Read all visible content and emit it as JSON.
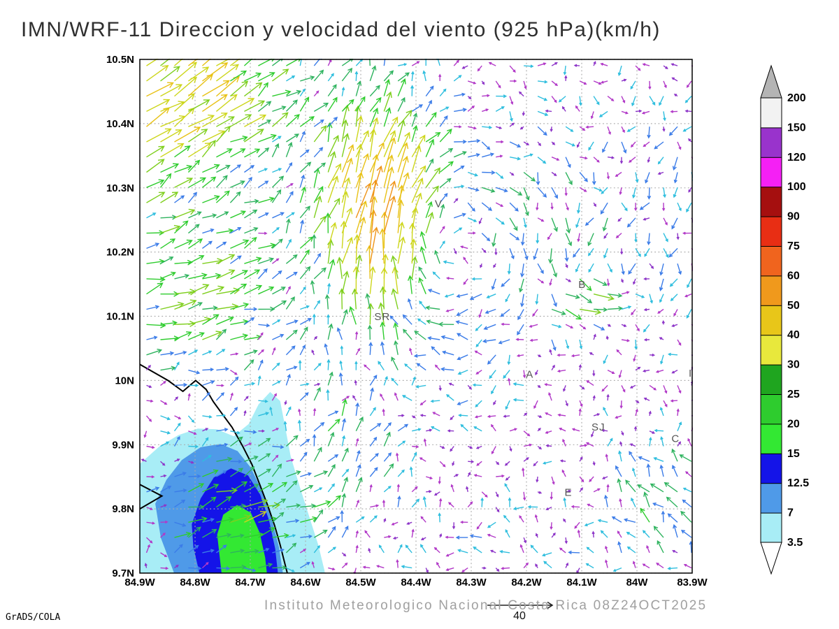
{
  "title": "IMN/WRF-11 Direccion y velocidad del viento (925 hPa)(km/h)",
  "footer": {
    "institution": "Instituto Meteorologico Nacional Costa Rica 08Z24OCT2025",
    "credit": "GrADS/COLA"
  },
  "chart_data": {
    "type": "vector-field-map",
    "model": "IMN/WRF-11",
    "variable": "Direccion y velocidad del viento",
    "level": "925 hPa",
    "units": "km/h",
    "valid_time": "08Z24OCT2025",
    "x_axis": {
      "min": -84.9,
      "max": -83.9,
      "ticks": [
        "84.9W",
        "84.8W",
        "84.7W",
        "84.6W",
        "84.5W",
        "84.4W",
        "84.3W",
        "84.2W",
        "84.1W",
        "84W",
        "83.9W"
      ]
    },
    "y_axis": {
      "min": 9.7,
      "max": 10.5,
      "ticks": [
        "10.5N",
        "10.4N",
        "10.3N",
        "10.2N",
        "10.1N",
        "10N",
        "9.9N",
        "9.8N",
        "9.7N"
      ]
    },
    "grid": {
      "dotted": true,
      "color": "#aaaaaa",
      "step_deg": 0.1
    },
    "legend": {
      "boundaries": [
        "3.5",
        "7",
        "12.5",
        "15",
        "20",
        "25",
        "30",
        "40",
        "50",
        "60",
        "75",
        "90",
        "100",
        "120",
        "150",
        "200"
      ],
      "band_colors": [
        "#a8edf6",
        "#4f9ae8",
        "#1414e8",
        "#33e833",
        "#2ecc2e",
        "#1fa51f",
        "#e8e83c",
        "#e8c619",
        "#f0991c",
        "#f0641e",
        "#e82e14",
        "#a50f0f",
        "#f520f5",
        "#9933cc",
        "#f2f2f2"
      ],
      "above_max_color": "#b4b4b4",
      "below_min_color": "#ffffff"
    },
    "arrow_palette": [
      {
        "max": 4.5,
        "color": "#8d35c8"
      },
      {
        "max": 7.5,
        "color": "#b23ac8"
      },
      {
        "max": 10.5,
        "color": "#2fbede"
      },
      {
        "max": 14,
        "color": "#3b7ce8"
      },
      {
        "max": 18,
        "color": "#2eb35e"
      },
      {
        "max": 23,
        "color": "#2ecc2e"
      },
      {
        "max": 29,
        "color": "#7fcf1e"
      },
      {
        "max": 36,
        "color": "#cdd61c"
      },
      {
        "max": 46,
        "color": "#e8c217"
      },
      {
        "max": 99,
        "color": "#ef9417"
      }
    ],
    "reference_vector": {
      "value": 40,
      "label": "40"
    },
    "stations": [
      {
        "label": "V",
        "lon": -84.359,
        "lat": 10.27
      },
      {
        "label": "SR",
        "lon": -84.461,
        "lat": 10.094
      },
      {
        "label": "B",
        "lon": -84.099,
        "lat": 10.144
      },
      {
        "label": "A",
        "lon": -84.194,
        "lat": 10.004
      },
      {
        "label": "SJ",
        "lon": -84.07,
        "lat": 9.922
      },
      {
        "label": "C",
        "lon": -83.93,
        "lat": 9.904
      },
      {
        "label": "E",
        "lon": -84.124,
        "lat": 9.82
      },
      {
        "label": "I",
        "lon": -83.903,
        "lat": 10.006
      }
    ],
    "coastlines": [
      [
        [
          -84.9,
          10.025
        ],
        [
          -84.849,
          10.0
        ],
        [
          -84.822,
          9.983
        ],
        [
          -84.799,
          10.0
        ],
        [
          -84.78,
          9.986
        ],
        [
          -84.767,
          9.967
        ],
        [
          -84.751,
          9.948
        ],
        [
          -84.733,
          9.927
        ],
        [
          -84.714,
          9.898
        ],
        [
          -84.697,
          9.869
        ],
        [
          -84.682,
          9.836
        ],
        [
          -84.668,
          9.804
        ],
        [
          -84.656,
          9.774
        ],
        [
          -84.646,
          9.744
        ],
        [
          -84.639,
          9.72
        ],
        [
          -84.633,
          9.7
        ]
      ],
      [
        [
          -84.9,
          9.838
        ],
        [
          -84.86,
          9.82
        ],
        [
          -84.9,
          9.8
        ]
      ]
    ],
    "shaded_regions": [
      {
        "level": "3.5",
        "color": "#a8edf6",
        "points": [
          [
            -84.9,
            9.87
          ],
          [
            -84.865,
            9.897
          ],
          [
            -84.83,
            9.915
          ],
          [
            -84.795,
            9.925
          ],
          [
            -84.76,
            9.924
          ],
          [
            -84.73,
            9.913
          ],
          [
            -84.703,
            9.932
          ],
          [
            -84.685,
            9.963
          ],
          [
            -84.664,
            9.982
          ],
          [
            -84.646,
            9.968
          ],
          [
            -84.637,
            9.928
          ],
          [
            -84.627,
            9.882
          ],
          [
            -84.611,
            9.836
          ],
          [
            -84.594,
            9.79
          ],
          [
            -84.577,
            9.744
          ],
          [
            -84.566,
            9.705
          ],
          [
            -84.565,
            9.7
          ],
          [
            -84.9,
            9.7
          ]
        ]
      },
      {
        "level": "7",
        "color": "#4f9ae8",
        "points": [
          [
            -84.872,
            9.808
          ],
          [
            -84.852,
            9.845
          ],
          [
            -84.824,
            9.876
          ],
          [
            -84.79,
            9.896
          ],
          [
            -84.754,
            9.901
          ],
          [
            -84.723,
            9.89
          ],
          [
            -84.699,
            9.864
          ],
          [
            -84.679,
            9.828
          ],
          [
            -84.661,
            9.784
          ],
          [
            -84.648,
            9.74
          ],
          [
            -84.641,
            9.7
          ],
          [
            -84.838,
            9.7
          ],
          [
            -84.862,
            9.755
          ]
        ]
      },
      {
        "level": "12.5",
        "color": "#1414e8",
        "points": [
          [
            -84.806,
            9.776
          ],
          [
            -84.79,
            9.816
          ],
          [
            -84.766,
            9.849
          ],
          [
            -84.735,
            9.863
          ],
          [
            -84.704,
            9.852
          ],
          [
            -84.682,
            9.822
          ],
          [
            -84.666,
            9.782
          ],
          [
            -84.655,
            9.738
          ],
          [
            -84.65,
            9.7
          ],
          [
            -84.792,
            9.7
          ],
          [
            -84.803,
            9.74
          ]
        ]
      },
      {
        "level": "15",
        "color": "#33e833",
        "points": [
          [
            -84.76,
            9.76
          ],
          [
            -84.749,
            9.791
          ],
          [
            -84.724,
            9.806
          ],
          [
            -84.699,
            9.794
          ],
          [
            -84.683,
            9.763
          ],
          [
            -84.673,
            9.724
          ],
          [
            -84.67,
            9.7
          ],
          [
            -84.752,
            9.7
          ]
        ]
      }
    ],
    "wind_field": {
      "grid": {
        "lon0": -84.888,
        "dlon": 0.0253,
        "ncols": 40,
        "lat0": 9.708,
        "dlat": 0.0237,
        "nrows": 34
      },
      "base_noise": {
        "min": 2,
        "max": 8
      },
      "features": [
        {
          "type": "uniform",
          "lon": -84.85,
          "lat": 10.45,
          "rx": 0.22,
          "ry": 0.18,
          "u": 30,
          "v": 20
        },
        {
          "type": "uniform",
          "lon": -84.82,
          "lat": 10.12,
          "rx": 0.22,
          "ry": 0.13,
          "u": 20,
          "v": 6
        },
        {
          "type": "uniform",
          "lon": -84.47,
          "lat": 10.27,
          "rx": 0.1,
          "ry": 0.17,
          "u": 6,
          "v": 38
        },
        {
          "type": "vortex",
          "lon": -84.34,
          "lat": 10.21,
          "rx": 0.2,
          "ry": 0.16,
          "s": 24
        },
        {
          "type": "uniform",
          "lon": -84.73,
          "lat": 9.79,
          "rx": 0.15,
          "ry": 0.11,
          "u": 21,
          "v": 7
        },
        {
          "type": "uniform",
          "lon": -84.52,
          "lat": 9.88,
          "rx": 0.12,
          "ry": 0.12,
          "u": 6,
          "v": 12
        },
        {
          "type": "uniform",
          "lon": -83.95,
          "lat": 9.8,
          "rx": 0.1,
          "ry": 0.12,
          "u": -8,
          "v": 11
        },
        {
          "type": "uniform",
          "lon": -83.95,
          "lat": 10.32,
          "rx": 0.14,
          "ry": 0.22,
          "u": -3,
          "v": -7
        },
        {
          "type": "uniform",
          "lon": -84.25,
          "lat": 9.73,
          "rx": 0.2,
          "ry": 0.08,
          "u": -5,
          "v": 2
        },
        {
          "type": "uniform",
          "lon": -84.1,
          "lat": 10.12,
          "rx": 0.07,
          "ry": 0.05,
          "u": 22,
          "v": 2
        }
      ]
    }
  }
}
